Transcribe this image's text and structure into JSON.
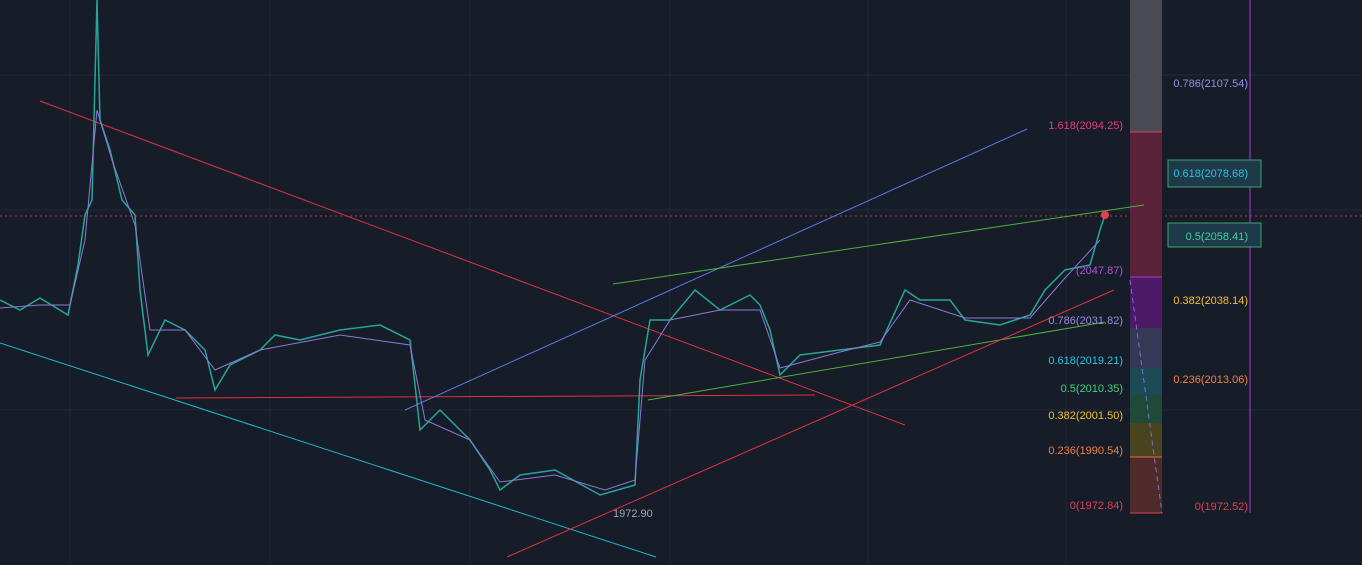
{
  "low_label": "1972.90",
  "fib_left": [
    "1.618(2094.25)",
    "(2047.87)",
    "0.786(2031.82)",
    "0.618(2019.21)",
    "0.5(2010.35)",
    "0.382(2001.50)",
    "0.236(1990.54)",
    "0(1972.84)"
  ],
  "fib_right": [
    "0.786(2107.54)",
    "0.618(2078.68)",
    "0.5(2058.41)",
    "0.382(2038.14)",
    "0.236(2013.06)",
    "0(1972.52)"
  ]
}
